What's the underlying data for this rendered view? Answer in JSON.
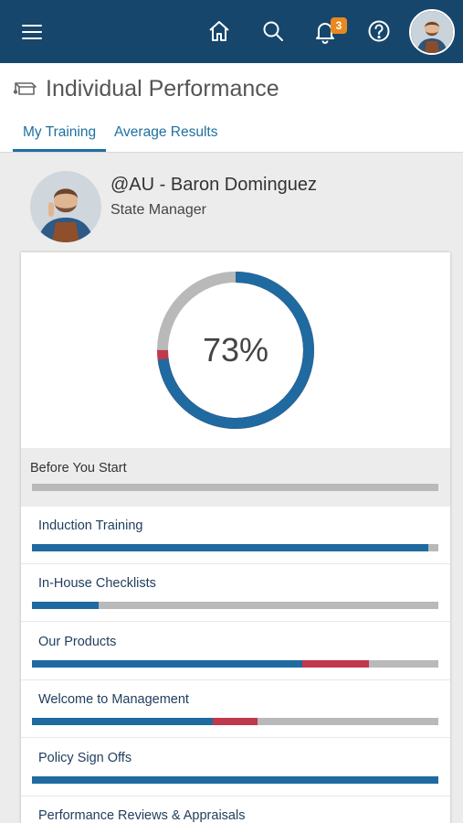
{
  "topbar": {
    "menu_icon": "hamburger-menu-icon",
    "home_icon": "home-icon",
    "search_icon": "search-icon",
    "bell_icon": "bell-icon",
    "notification_count": "3",
    "help_icon": "help-circle-icon",
    "avatar_icon": "user-avatar"
  },
  "header": {
    "title": "Individual Performance",
    "tabs": [
      {
        "label": "My Training",
        "active": true
      },
      {
        "label": "Average Results",
        "active": false
      }
    ]
  },
  "profile": {
    "name": "@AU - Baron Dominguez",
    "role": "State Manager"
  },
  "summary": {
    "percent_label": "73%",
    "complete_fraction": 0.73,
    "failed_fraction": 0.02,
    "colors": {
      "complete": "#1f6aa0",
      "failed": "#c0384b",
      "remaining": "#b9b9b9"
    }
  },
  "sections": [
    {
      "label": "Before You Start",
      "complete": 0.0,
      "failed": 0.0,
      "header": true
    },
    {
      "label": "Induction Training",
      "complete": 0.975,
      "failed": 0.0
    },
    {
      "label": "In-House Checklists",
      "complete": 0.165,
      "failed": 0.0
    },
    {
      "label": "Our Products",
      "complete": 0.665,
      "failed": 0.165
    },
    {
      "label": "Welcome to Management",
      "complete": 0.445,
      "failed": 0.11
    },
    {
      "label": "Policy Sign Offs",
      "complete": 1.0,
      "failed": 0.0
    },
    {
      "label": "Performance Reviews & Appraisals",
      "complete": 0.0,
      "failed": 0.0
    }
  ]
}
